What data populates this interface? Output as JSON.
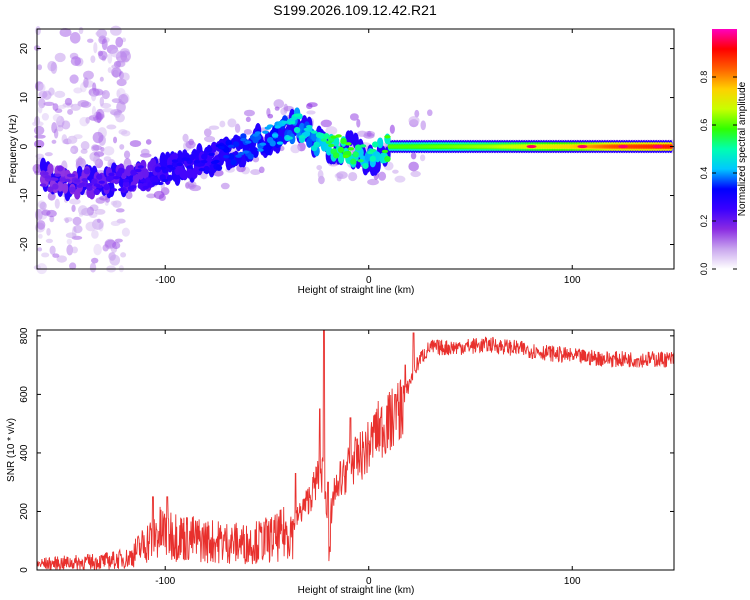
{
  "title": "S199.2026.109.12.42.R21",
  "chart_data": [
    {
      "type": "heatmap",
      "name": "spectrogram",
      "xlabel": "Height of straight line (km)",
      "ylabel": "Frequency (Hz)",
      "xlim": [
        -163,
        150
      ],
      "ylim": [
        -25,
        24
      ],
      "xticks": [
        -100,
        0,
        100
      ],
      "xtick_labels": [
        "-100",
        "0",
        "100"
      ],
      "yticks": [
        -20,
        -10,
        0,
        10,
        20
      ],
      "ytick_labels": [
        "-20",
        "-10",
        "0",
        "10",
        "20"
      ],
      "colorbar": {
        "label": "Normalized spectral amplitude",
        "range": [
          0,
          1
        ],
        "ticks": [
          0.0,
          0.2,
          0.4,
          0.6,
          0.8
        ],
        "tick_labels": [
          "0.0",
          "0.2",
          "0.4",
          "0.6",
          "0.8"
        ],
        "colors": [
          "#ffffff",
          "#c9a6ee",
          "#8a2be2",
          "#3a00ff",
          "#0000ff",
          "#00c8ff",
          "#00ffb0",
          "#30ff00",
          "#c8ff00",
          "#ffd000",
          "#ff6000",
          "#ff0000",
          "#ff00c0"
        ]
      },
      "ridge": {
        "x": [
          -160,
          -150,
          -140,
          -130,
          -120,
          -110,
          -100,
          -90,
          -80,
          -70,
          -60,
          -50,
          -45,
          -40,
          -35,
          -30,
          -25,
          -20,
          -15,
          -10,
          -5,
          0,
          5,
          10,
          20,
          40,
          60,
          80,
          100,
          120,
          150
        ],
        "freq": [
          -6,
          -7,
          -7.5,
          -7,
          -6.5,
          -6,
          -5,
          -4,
          -3,
          -1.5,
          0,
          1.5,
          2.5,
          3.5,
          4.5,
          3,
          0.5,
          -0.5,
          0,
          -0.5,
          -1,
          -3,
          -1.5,
          0,
          0,
          0,
          0,
          0,
          0,
          0,
          0
        ],
        "amplitude": [
          0.2,
          0.2,
          0.22,
          0.25,
          0.25,
          0.25,
          0.3,
          0.3,
          0.3,
          0.35,
          0.38,
          0.4,
          0.42,
          0.45,
          0.5,
          0.45,
          0.5,
          0.55,
          0.6,
          0.6,
          0.55,
          0.5,
          0.55,
          0.6,
          0.6,
          0.62,
          0.65,
          0.7,
          0.75,
          0.85,
          0.9
        ]
      }
    },
    {
      "type": "line",
      "name": "snr",
      "xlabel": "Height of straight line (km)",
      "ylabel": "SNR (10 * v/v)",
      "xlim": [
        -163,
        150
      ],
      "ylim": [
        0,
        820
      ],
      "xticks": [
        -100,
        0,
        100
      ],
      "xtick_labels": [
        "-100",
        "0",
        "100"
      ],
      "yticks": [
        0,
        200,
        400,
        600,
        800
      ],
      "ytick_labels": [
        "0",
        "200",
        "400",
        "600",
        "800"
      ],
      "color": "#e8302d",
      "trend": {
        "x": [
          -163,
          -130,
          -118,
          -110,
          -105,
          -100,
          -90,
          -80,
          -60,
          -45,
          -38,
          -35,
          -28,
          -25,
          -22,
          -20,
          -19,
          -17,
          -15,
          -10,
          -5,
          0,
          5,
          10,
          15,
          20,
          25,
          30,
          40,
          60,
          80,
          100,
          120,
          150
        ],
        "y": [
          20,
          30,
          40,
          90,
          120,
          130,
          110,
          100,
          90,
          110,
          140,
          180,
          260,
          320,
          330,
          120,
          90,
          280,
          260,
          360,
          380,
          420,
          480,
          500,
          540,
          640,
          720,
          760,
          760,
          770,
          750,
          730,
          720,
          720
        ]
      },
      "spikes": {
        "x": [
          -106,
          -99,
          -36,
          -24,
          -22,
          -20,
          -14,
          -9,
          3,
          9,
          13,
          18,
          22
        ],
        "y": [
          250,
          250,
          330,
          550,
          820,
          300,
          370,
          520,
          530,
          560,
          600,
          700,
          810
        ]
      }
    }
  ]
}
